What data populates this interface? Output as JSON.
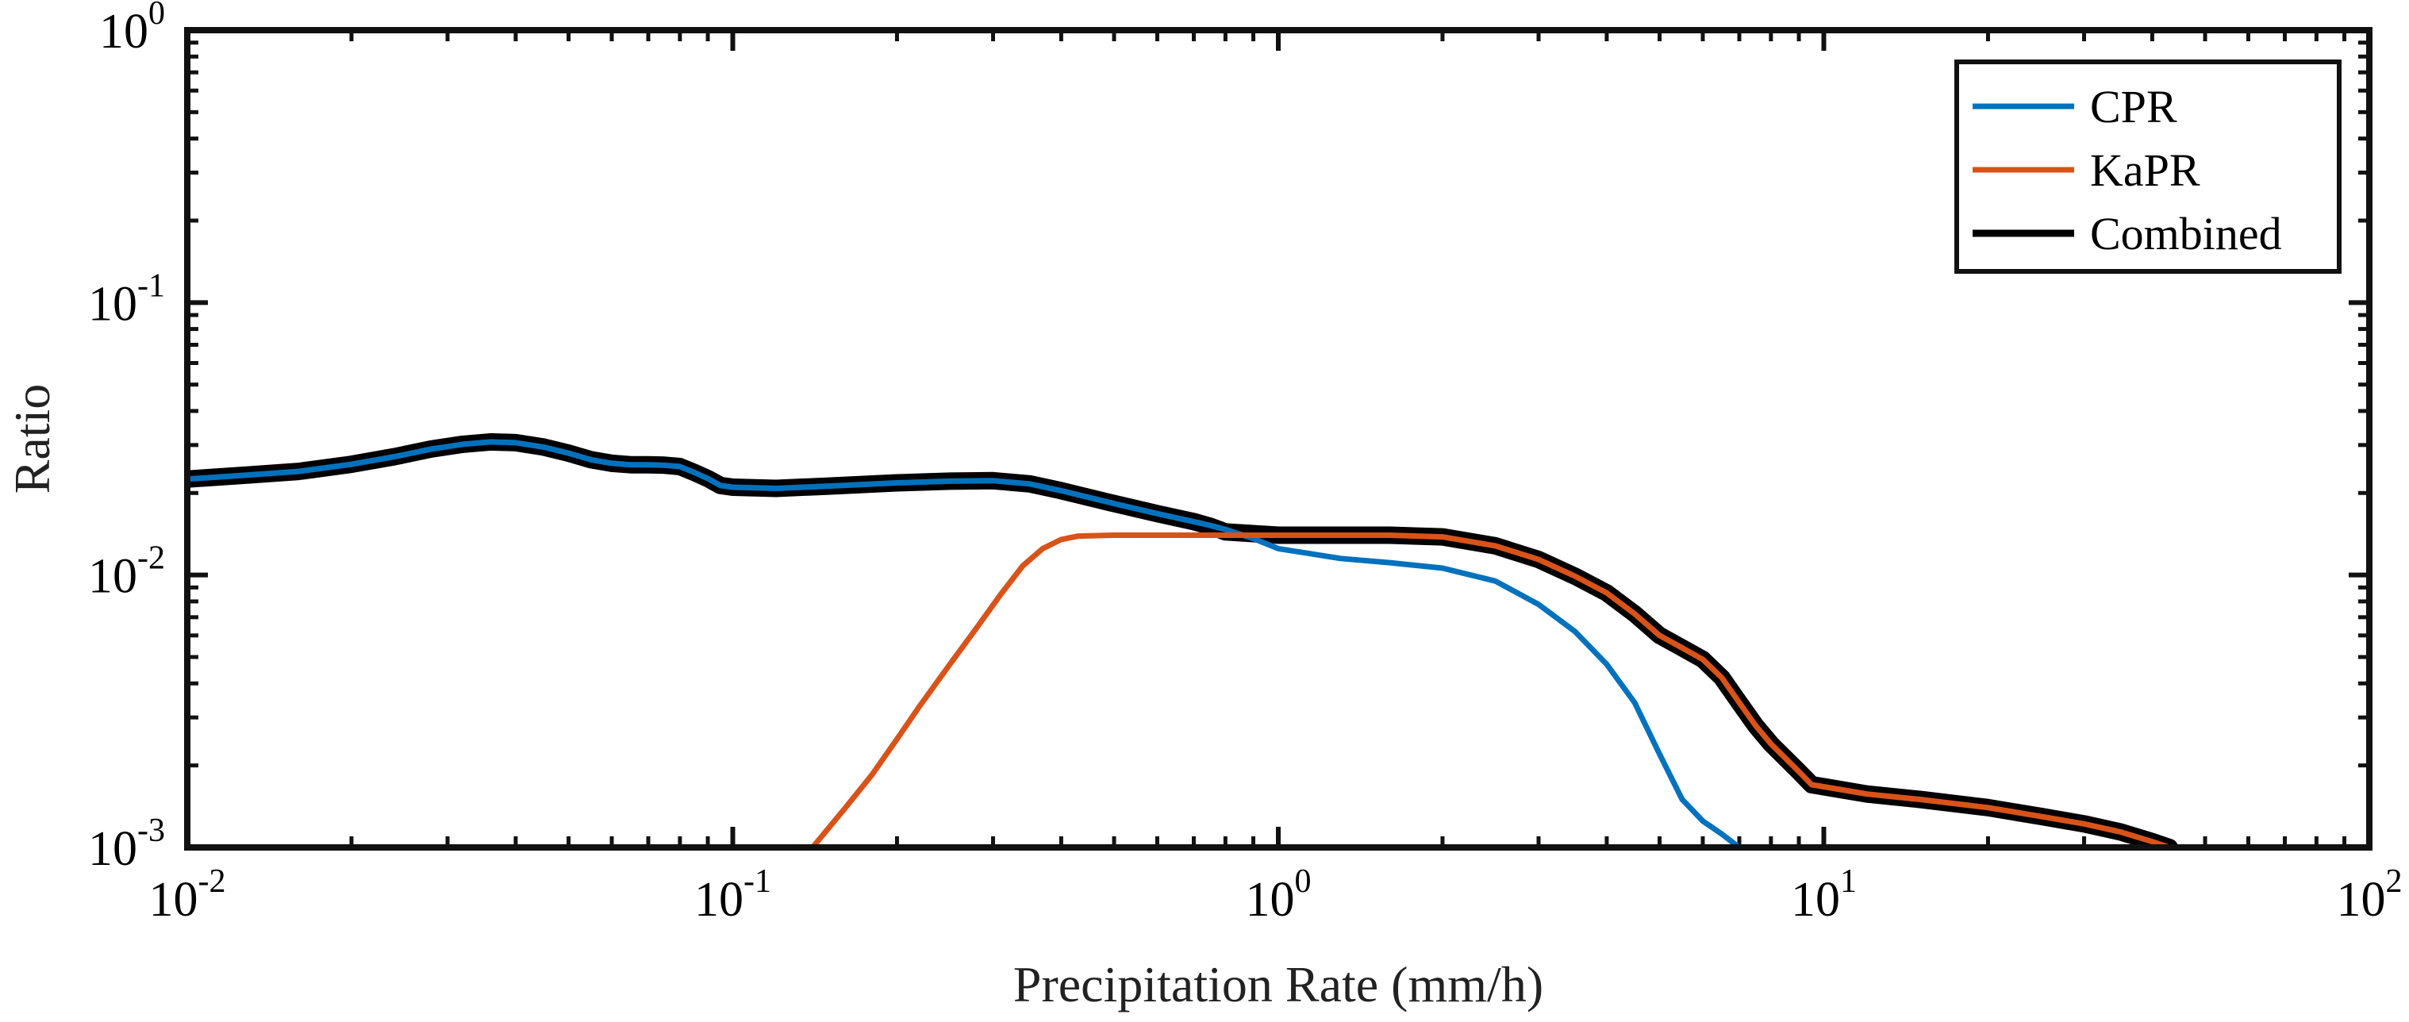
{
  "chart_data": {
    "type": "line",
    "title": "",
    "xlabel": "Precipitation Rate (mm/h)",
    "ylabel": "Ratio",
    "xscale": "log",
    "yscale": "log",
    "xlim": [
      0.01,
      100
    ],
    "ylim": [
      0.001,
      1
    ],
    "grid": false,
    "legend_position": "top-right",
    "x_ticks": [
      {
        "value": 0.01,
        "base": "10",
        "exp": "-2"
      },
      {
        "value": 0.1,
        "base": "10",
        "exp": "-1"
      },
      {
        "value": 1,
        "base": "10",
        "exp": "0"
      },
      {
        "value": 10,
        "base": "10",
        "exp": "1"
      },
      {
        "value": 100,
        "base": "10",
        "exp": "2"
      }
    ],
    "y_ticks": [
      {
        "value": 0.001,
        "base": "10",
        "exp": "-3"
      },
      {
        "value": 0.01,
        "base": "10",
        "exp": "-2"
      },
      {
        "value": 0.1,
        "base": "10",
        "exp": "-1"
      },
      {
        "value": 1,
        "base": "10",
        "exp": "0"
      }
    ],
    "series": [
      {
        "name": "Combined",
        "color": "#000000",
        "x": [
          0.01,
          0.013,
          0.016,
          0.02,
          0.024,
          0.028,
          0.032,
          0.036,
          0.04,
          0.045,
          0.05,
          0.055,
          0.06,
          0.065,
          0.07,
          0.075,
          0.08,
          0.085,
          0.09,
          0.095,
          0.1,
          0.12,
          0.15,
          0.2,
          0.25,
          0.3,
          0.35,
          0.4,
          0.5,
          0.6,
          0.7,
          0.75,
          0.8,
          1.0,
          1.3,
          1.6,
          2.0,
          2.5,
          3.0,
          3.5,
          4.0,
          4.5,
          5.0,
          5.5,
          6.0,
          6.5,
          7.0,
          7.5,
          8.0,
          9.0,
          9.5,
          10,
          12,
          15,
          20,
          25,
          30,
          35,
          40,
          43
        ],
        "values": [
          0.0225,
          0.0233,
          0.024,
          0.0255,
          0.0272,
          0.029,
          0.0302,
          0.0308,
          0.0306,
          0.0295,
          0.028,
          0.0265,
          0.0257,
          0.0254,
          0.0254,
          0.0253,
          0.025,
          0.0238,
          0.0226,
          0.0213,
          0.021,
          0.0208,
          0.0212,
          0.0218,
          0.0221,
          0.0222,
          0.0216,
          0.0204,
          0.0183,
          0.0168,
          0.0157,
          0.0151,
          0.0144,
          0.014,
          0.014,
          0.014,
          0.0138,
          0.0128,
          0.0114,
          0.0099,
          0.0086,
          0.0072,
          0.006,
          0.0054,
          0.0049,
          0.0042,
          0.0034,
          0.0028,
          0.0024,
          0.0019,
          0.0017,
          0.00167,
          0.00157,
          0.0015,
          0.0014,
          0.0013,
          0.00122,
          0.00114,
          0.00105,
          0.001
        ]
      },
      {
        "name": "CPR",
        "color": "#0072BD",
        "x": [
          0.01,
          0.013,
          0.016,
          0.02,
          0.024,
          0.028,
          0.032,
          0.036,
          0.04,
          0.045,
          0.05,
          0.055,
          0.06,
          0.065,
          0.07,
          0.075,
          0.08,
          0.085,
          0.09,
          0.095,
          0.1,
          0.12,
          0.15,
          0.2,
          0.25,
          0.3,
          0.35,
          0.4,
          0.5,
          0.6,
          0.7,
          0.75,
          0.8,
          0.9,
          1.0,
          1.3,
          1.6,
          2.0,
          2.5,
          3.0,
          3.5,
          4.0,
          4.5,
          5.0,
          5.5,
          6.0,
          6.5,
          7.0
        ],
        "values": [
          0.0225,
          0.0233,
          0.024,
          0.0255,
          0.0272,
          0.029,
          0.0302,
          0.0308,
          0.0306,
          0.0295,
          0.028,
          0.0265,
          0.0257,
          0.0254,
          0.0254,
          0.0253,
          0.025,
          0.0238,
          0.0226,
          0.0213,
          0.021,
          0.0208,
          0.0212,
          0.0218,
          0.0221,
          0.0222,
          0.0216,
          0.0204,
          0.0183,
          0.0168,
          0.0157,
          0.0152,
          0.0147,
          0.0136,
          0.0125,
          0.0115,
          0.0111,
          0.0106,
          0.0095,
          0.0078,
          0.0062,
          0.0047,
          0.0034,
          0.0022,
          0.0015,
          0.00125,
          0.00112,
          0.001
        ]
      },
      {
        "name": "KaPR",
        "color": "#D95319",
        "x": [
          0.14,
          0.16,
          0.18,
          0.2,
          0.22,
          0.25,
          0.28,
          0.31,
          0.34,
          0.37,
          0.4,
          0.43,
          0.5,
          0.7,
          1.0,
          1.3,
          1.6,
          2.0,
          2.5,
          3.0,
          3.5,
          4.0,
          4.5,
          5.0,
          5.5,
          6.0,
          6.5,
          7.0,
          7.5,
          8.0,
          9.0,
          9.5,
          10,
          12,
          15,
          20,
          25,
          30,
          35,
          40,
          43
        ],
        "values": [
          0.001,
          0.00138,
          0.00185,
          0.0025,
          0.0033,
          0.0047,
          0.0064,
          0.0085,
          0.0108,
          0.0125,
          0.0135,
          0.0139,
          0.014,
          0.014,
          0.014,
          0.014,
          0.014,
          0.0138,
          0.0128,
          0.0114,
          0.0099,
          0.0086,
          0.0072,
          0.006,
          0.0054,
          0.0049,
          0.0042,
          0.0034,
          0.0028,
          0.0024,
          0.0019,
          0.0017,
          0.00167,
          0.00157,
          0.0015,
          0.0014,
          0.0013,
          0.00122,
          0.00114,
          0.00105,
          0.001
        ]
      }
    ],
    "legend": [
      {
        "name": "CPR",
        "color": "#0072BD"
      },
      {
        "name": "KaPR",
        "color": "#D95319"
      },
      {
        "name": "Combined",
        "color": "#000000"
      }
    ]
  }
}
